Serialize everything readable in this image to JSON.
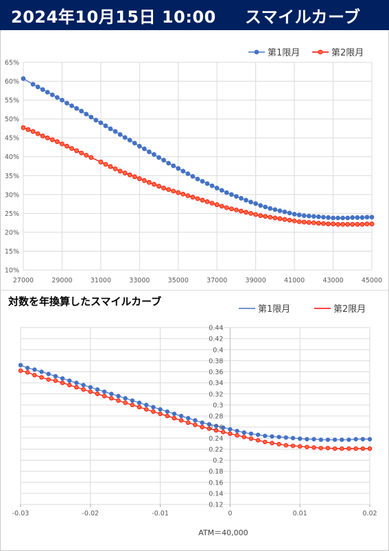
{
  "header": {
    "date": "2024年10月15日 10:00",
    "title": "スマイルカーブ"
  },
  "colors": {
    "header_bg": "#002060",
    "series1": "#4472c4",
    "series2": "#ff0000",
    "series2_fill": "#ff6a3a"
  },
  "chart_data": [
    {
      "type": "line",
      "title": "",
      "xlabel": "",
      "ylabel": "",
      "xlim": [
        27000,
        45000
      ],
      "ylim": [
        0.1,
        0.65
      ],
      "x_ticks": [
        "27000",
        "29000",
        "31000",
        "33000",
        "35000",
        "37000",
        "39000",
        "41000",
        "43000",
        "45000"
      ],
      "y_ticks": [
        "10%",
        "15%",
        "20%",
        "25%",
        "30%",
        "35%",
        "40%",
        "45%",
        "50%",
        "55%",
        "60%",
        "65%"
      ],
      "legend_position": "top-right",
      "grid": true,
      "series": [
        {
          "name": "第1限月",
          "points": [
            [
              27000,
              0.607
            ],
            [
              27500,
              0.592
            ],
            [
              27750,
              0.585
            ],
            [
              28000,
              0.578
            ],
            [
              28250,
              0.571
            ],
            [
              28500,
              0.564
            ],
            [
              28750,
              0.557
            ],
            [
              29000,
              0.55
            ],
            [
              29250,
              0.542
            ],
            [
              29500,
              0.535
            ],
            [
              29750,
              0.528
            ],
            [
              30000,
              0.521
            ],
            [
              30250,
              0.513
            ],
            [
              30500,
              0.505
            ],
            [
              30750,
              0.497
            ],
            [
              31000,
              0.49
            ],
            [
              31250,
              0.482
            ],
            [
              31500,
              0.474
            ],
            [
              31750,
              0.467
            ],
            [
              32000,
              0.459
            ],
            [
              32250,
              0.451
            ],
            [
              32500,
              0.444
            ],
            [
              32750,
              0.436
            ],
            [
              33000,
              0.428
            ],
            [
              33250,
              0.421
            ],
            [
              33500,
              0.413
            ],
            [
              33750,
              0.406
            ],
            [
              34000,
              0.398
            ],
            [
              34250,
              0.391
            ],
            [
              34500,
              0.383
            ],
            [
              34750,
              0.376
            ],
            [
              35000,
              0.369
            ],
            [
              35250,
              0.362
            ],
            [
              35500,
              0.355
            ],
            [
              35750,
              0.348
            ],
            [
              36000,
              0.341
            ],
            [
              36250,
              0.335
            ],
            [
              36500,
              0.329
            ],
            [
              36750,
              0.323
            ],
            [
              37000,
              0.317
            ],
            [
              37250,
              0.311
            ],
            [
              37500,
              0.305
            ],
            [
              37750,
              0.3
            ],
            [
              38000,
              0.295
            ],
            [
              38250,
              0.29
            ],
            [
              38500,
              0.285
            ],
            [
              38750,
              0.28
            ],
            [
              39000,
              0.276
            ],
            [
              39250,
              0.271
            ],
            [
              39500,
              0.267
            ],
            [
              39750,
              0.263
            ],
            [
              40000,
              0.26
            ],
            [
              40250,
              0.257
            ],
            [
              40500,
              0.254
            ],
            [
              40750,
              0.251
            ],
            [
              41000,
              0.248
            ],
            [
              41250,
              0.246
            ],
            [
              41500,
              0.244
            ],
            [
              41750,
              0.243
            ],
            [
              42000,
              0.242
            ],
            [
              42250,
              0.241
            ],
            [
              42500,
              0.24
            ],
            [
              42750,
              0.239
            ],
            [
              43000,
              0.238
            ],
            [
              43250,
              0.238
            ],
            [
              43500,
              0.238
            ],
            [
              43750,
              0.238
            ],
            [
              44000,
              0.239
            ],
            [
              44250,
              0.239
            ],
            [
              44500,
              0.239
            ],
            [
              44750,
              0.24
            ],
            [
              45000,
              0.24
            ]
          ]
        },
        {
          "name": "第2限月",
          "points": [
            [
              27000,
              0.477
            ],
            [
              27250,
              0.472
            ],
            [
              27500,
              0.467
            ],
            [
              27750,
              0.461
            ],
            [
              28000,
              0.455
            ],
            [
              28250,
              0.45
            ],
            [
              28500,
              0.445
            ],
            [
              28750,
              0.44
            ],
            [
              29000,
              0.434
            ],
            [
              29250,
              0.428
            ],
            [
              29500,
              0.422
            ],
            [
              29750,
              0.416
            ],
            [
              30000,
              0.41
            ],
            [
              30250,
              0.404
            ],
            [
              30500,
              0.398
            ],
            [
              31000,
              0.386
            ],
            [
              31250,
              0.38
            ],
            [
              31500,
              0.374
            ],
            [
              31750,
              0.368
            ],
            [
              32000,
              0.362
            ],
            [
              32250,
              0.357
            ],
            [
              32500,
              0.352
            ],
            [
              32750,
              0.347
            ],
            [
              33000,
              0.342
            ],
            [
              33250,
              0.337
            ],
            [
              33500,
              0.332
            ],
            [
              33750,
              0.327
            ],
            [
              34000,
              0.322
            ],
            [
              34250,
              0.317
            ],
            [
              34500,
              0.313
            ],
            [
              34750,
              0.309
            ],
            [
              35000,
              0.305
            ],
            [
              35250,
              0.301
            ],
            [
              35500,
              0.297
            ],
            [
              35750,
              0.293
            ],
            [
              36000,
              0.289
            ],
            [
              36250,
              0.285
            ],
            [
              36500,
              0.281
            ],
            [
              36750,
              0.277
            ],
            [
              37000,
              0.273
            ],
            [
              37250,
              0.269
            ],
            [
              37500,
              0.265
            ],
            [
              37750,
              0.262
            ],
            [
              38000,
              0.259
            ],
            [
              38250,
              0.256
            ],
            [
              38500,
              0.253
            ],
            [
              38750,
              0.25
            ],
            [
              39000,
              0.247
            ],
            [
              39250,
              0.244
            ],
            [
              39500,
              0.242
            ],
            [
              39750,
              0.24
            ],
            [
              40000,
              0.238
            ],
            [
              40250,
              0.236
            ],
            [
              40500,
              0.234
            ],
            [
              40750,
              0.232
            ],
            [
              41000,
              0.23
            ],
            [
              41250,
              0.228
            ],
            [
              41500,
              0.227
            ],
            [
              41750,
              0.226
            ],
            [
              42000,
              0.225
            ],
            [
              42250,
              0.224
            ],
            [
              42500,
              0.223
            ],
            [
              42750,
              0.222
            ],
            [
              43000,
              0.222
            ],
            [
              43250,
              0.221
            ],
            [
              43500,
              0.221
            ],
            [
              43750,
              0.221
            ],
            [
              44000,
              0.221
            ],
            [
              44250,
              0.221
            ],
            [
              44500,
              0.221
            ],
            [
              44750,
              0.222
            ],
            [
              45000,
              0.222
            ]
          ]
        }
      ]
    },
    {
      "type": "line",
      "title": "対数を年換算したスマイルカーブ",
      "xlabel": "ATM＝40,000",
      "ylabel": "",
      "xlim": [
        -0.03,
        0.02
      ],
      "ylim": [
        0.12,
        0.44
      ],
      "x_ticks": [
        "-0.03",
        "-0.02",
        "-0.01",
        "0",
        "0.01",
        "0.02"
      ],
      "y_ticks": [
        "0.12",
        "0.14",
        "0.16",
        "0.18",
        "0.2",
        "0.22",
        "0.24",
        "0.26",
        "0.28",
        "0.3",
        "0.32",
        "0.34",
        "0.36",
        "0.38",
        "0.4",
        "0.42",
        "0.44"
      ],
      "legend_position": "top-right",
      "grid": true,
      "series": [
        {
          "name": "第1限月",
          "points": [
            [
              -0.03,
              0.372
            ],
            [
              -0.029,
              0.367
            ],
            [
              -0.028,
              0.364
            ],
            [
              -0.027,
              0.36
            ],
            [
              -0.026,
              0.356
            ],
            [
              -0.025,
              0.352
            ],
            [
              -0.024,
              0.348
            ],
            [
              -0.023,
              0.344
            ],
            [
              -0.022,
              0.34
            ],
            [
              -0.021,
              0.336
            ],
            [
              -0.02,
              0.332
            ],
            [
              -0.019,
              0.328
            ],
            [
              -0.018,
              0.324
            ],
            [
              -0.017,
              0.32
            ],
            [
              -0.016,
              0.316
            ],
            [
              -0.015,
              0.312
            ],
            [
              -0.014,
              0.308
            ],
            [
              -0.013,
              0.304
            ],
            [
              -0.012,
              0.3
            ],
            [
              -0.011,
              0.296
            ],
            [
              -0.01,
              0.292
            ],
            [
              -0.009,
              0.288
            ],
            [
              -0.008,
              0.284
            ],
            [
              -0.007,
              0.28
            ],
            [
              -0.006,
              0.276
            ],
            [
              -0.005,
              0.272
            ],
            [
              -0.004,
              0.268
            ],
            [
              -0.003,
              0.265
            ],
            [
              -0.002,
              0.262
            ],
            [
              -0.001,
              0.259
            ],
            [
              0.0,
              0.256
            ],
            [
              0.001,
              0.253
            ],
            [
              0.002,
              0.25
            ],
            [
              0.003,
              0.248
            ],
            [
              0.004,
              0.246
            ],
            [
              0.005,
              0.244
            ],
            [
              0.006,
              0.243
            ],
            [
              0.007,
              0.242
            ],
            [
              0.008,
              0.241
            ],
            [
              0.009,
              0.24
            ],
            [
              0.01,
              0.239
            ],
            [
              0.011,
              0.238
            ],
            [
              0.012,
              0.238
            ],
            [
              0.013,
              0.237
            ],
            [
              0.014,
              0.237
            ],
            [
              0.015,
              0.237
            ],
            [
              0.016,
              0.237
            ],
            [
              0.017,
              0.237
            ],
            [
              0.018,
              0.238
            ],
            [
              0.019,
              0.238
            ],
            [
              0.02,
              0.238
            ]
          ]
        },
        {
          "name": "第2限月",
          "points": [
            [
              -0.03,
              0.362
            ],
            [
              -0.029,
              0.359
            ],
            [
              -0.028,
              0.354
            ],
            [
              -0.027,
              0.35
            ],
            [
              -0.026,
              0.346
            ],
            [
              -0.025,
              0.344
            ],
            [
              -0.024,
              0.34
            ],
            [
              -0.023,
              0.336
            ],
            [
              -0.022,
              0.332
            ],
            [
              -0.021,
              0.328
            ],
            [
              -0.02,
              0.324
            ],
            [
              -0.019,
              0.32
            ],
            [
              -0.018,
              0.316
            ],
            [
              -0.017,
              0.312
            ],
            [
              -0.016,
              0.308
            ],
            [
              -0.015,
              0.304
            ],
            [
              -0.014,
              0.3
            ],
            [
              -0.013,
              0.296
            ],
            [
              -0.012,
              0.292
            ],
            [
              -0.011,
              0.288
            ],
            [
              -0.01,
              0.284
            ],
            [
              -0.009,
              0.28
            ],
            [
              -0.008,
              0.276
            ],
            [
              -0.007,
              0.272
            ],
            [
              -0.006,
              0.268
            ],
            [
              -0.005,
              0.264
            ],
            [
              -0.004,
              0.26
            ],
            [
              -0.003,
              0.257
            ],
            [
              -0.002,
              0.254
            ],
            [
              -0.001,
              0.251
            ],
            [
              0.0,
              0.248
            ],
            [
              0.001,
              0.245
            ],
            [
              0.002,
              0.242
            ],
            [
              0.003,
              0.239
            ],
            [
              0.004,
              0.236
            ],
            [
              0.005,
              0.233
            ],
            [
              0.006,
              0.231
            ],
            [
              0.007,
              0.229
            ],
            [
              0.008,
              0.227
            ],
            [
              0.009,
              0.226
            ],
            [
              0.01,
              0.225
            ],
            [
              0.011,
              0.224
            ],
            [
              0.012,
              0.223
            ],
            [
              0.013,
              0.222
            ],
            [
              0.014,
              0.222
            ],
            [
              0.015,
              0.221
            ],
            [
              0.016,
              0.221
            ],
            [
              0.017,
              0.221
            ],
            [
              0.018,
              0.221
            ],
            [
              0.019,
              0.221
            ],
            [
              0.02,
              0.221
            ]
          ]
        }
      ]
    }
  ]
}
